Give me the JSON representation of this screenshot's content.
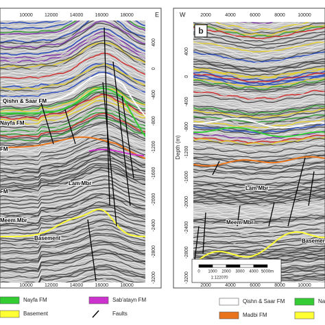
{
  "panel_a": {
    "corner_label": "E",
    "x_ticks_top": [
      "10000",
      "12000",
      "14000",
      "16000",
      "18000"
    ],
    "x_ticks_bottom": [
      "10000",
      "12000",
      "14000",
      "16000",
      "18000"
    ],
    "y_ticks": [
      "400",
      "0",
      "-400",
      "-800",
      "-1200",
      "-1600",
      "-2000",
      "-2400",
      "-2800",
      "-3200"
    ],
    "labels": [
      "Qishn & Saar FM",
      "Nayfa FM",
      "FM",
      "Lam Mbr",
      "FM",
      "Meem Mbr",
      "Basement"
    ],
    "legend": [
      {
        "label": "Nayfa FM",
        "color": "#33cc33"
      },
      {
        "label": "Sab'atayn FM",
        "color": "#cc33cc"
      },
      {
        "label": "Basement",
        "color": "#ffff33"
      },
      {
        "label": "Faults",
        "color": "#000000"
      }
    ]
  },
  "panel_b": {
    "panel_label": "b",
    "corner_label": "W",
    "y_axis_label": "Depth (m)",
    "x_ticks_top": [
      "2000",
      "4000",
      "6000",
      "8000",
      "10000"
    ],
    "x_ticks_bottom": [
      "2000",
      "4000",
      "6000",
      "8000",
      "10000"
    ],
    "y_ticks": [
      "400",
      "0",
      "-400",
      "-800",
      "-1200",
      "-1600",
      "-2000",
      "-2400",
      "-2800",
      "-3200"
    ],
    "labels": [
      "Lam Mbr",
      "Meem Mbr",
      "Basemen"
    ],
    "scale_bar": {
      "ticks": [
        "0",
        "1000",
        "2000",
        "3000",
        "4000",
        "5000m"
      ],
      "ratio": "1:122070"
    },
    "legend": [
      {
        "label": "Qishn & Saar FM",
        "color": "#ffffff"
      },
      {
        "label": "Nayfa",
        "color": "#33cc33"
      },
      {
        "label": "Madbi FM",
        "color": "#e8731a"
      },
      {
        "label": "",
        "color": "#ffff33"
      }
    ]
  }
}
